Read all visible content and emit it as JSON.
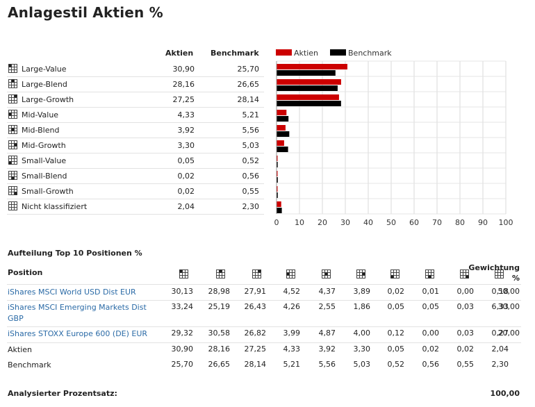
{
  "title": "Anlagestil Aktien %",
  "style_table": {
    "col_aktien": "Aktien",
    "col_benchmark": "Benchmark",
    "rows": [
      {
        "label": "Large-Value",
        "aktien": "30,90",
        "benchmark": "25,70"
      },
      {
        "label": "Large-Blend",
        "aktien": "28,16",
        "benchmark": "26,65"
      },
      {
        "label": "Large-Growth",
        "aktien": "27,25",
        "benchmark": "28,14"
      },
      {
        "label": "Mid-Value",
        "aktien": "4,33",
        "benchmark": "5,21"
      },
      {
        "label": "Mid-Blend",
        "aktien": "3,92",
        "benchmark": "5,56"
      },
      {
        "label": "Mid-Growth",
        "aktien": "3,30",
        "benchmark": "5,03"
      },
      {
        "label": "Small-Value",
        "aktien": "0,05",
        "benchmark": "0,52"
      },
      {
        "label": "Small-Blend",
        "aktien": "0,02",
        "benchmark": "0,56"
      },
      {
        "label": "Small-Growth",
        "aktien": "0,02",
        "benchmark": "0,55"
      },
      {
        "label": "Nicht klassifiziert",
        "aktien": "2,04",
        "benchmark": "2,30"
      }
    ]
  },
  "chart_data": {
    "type": "bar",
    "orientation": "horizontal",
    "categories": [
      "Large-Value",
      "Large-Blend",
      "Large-Growth",
      "Mid-Value",
      "Mid-Blend",
      "Mid-Growth",
      "Small-Value",
      "Small-Blend",
      "Small-Growth",
      "Nicht klassifiziert"
    ],
    "series": [
      {
        "name": "Aktien",
        "color": "#cc0000",
        "values": [
          30.9,
          28.16,
          27.25,
          4.33,
          3.92,
          3.3,
          0.05,
          0.02,
          0.02,
          2.04
        ]
      },
      {
        "name": "Benchmark",
        "color": "#000000",
        "values": [
          25.7,
          26.65,
          28.14,
          5.21,
          5.56,
          5.03,
          0.52,
          0.56,
          0.55,
          2.3
        ]
      }
    ],
    "xlim": [
      0,
      100
    ],
    "xticks": [
      "0",
      "10",
      "20",
      "30",
      "40",
      "50",
      "60",
      "70",
      "80",
      "90",
      "100"
    ],
    "legend": "top",
    "grid": true
  },
  "positions": {
    "section_title": "Aufteilung Top 10 Positionen %",
    "header_position": "Position",
    "header_weight_line1": "Gewichtung",
    "header_weight_line2": "%",
    "rows": [
      {
        "name": "iShares MSCI World USD Dist EUR",
        "link": true,
        "values": [
          "30,13",
          "28,98",
          "27,91",
          "4,52",
          "4,37",
          "3,89",
          "0,02",
          "0,01",
          "0,00",
          "0,18"
        ],
        "weight": "50,00"
      },
      {
        "name": "iShares MSCI Emerging Markets Dist GBP",
        "link": true,
        "values": [
          "33,24",
          "25,19",
          "26,43",
          "4,26",
          "2,55",
          "1,86",
          "0,05",
          "0,05",
          "0,03",
          "6,33"
        ],
        "weight": "30,00"
      },
      {
        "name": "iShares STOXX Europe 600 (DE) EUR",
        "link": true,
        "values": [
          "29,32",
          "30,58",
          "26,82",
          "3,99",
          "4,87",
          "4,00",
          "0,12",
          "0,00",
          "0,03",
          "0,27"
        ],
        "weight": "20,00"
      },
      {
        "name": "Aktien",
        "link": false,
        "values": [
          "30,90",
          "28,16",
          "27,25",
          "4,33",
          "3,92",
          "3,30",
          "0,05",
          "0,02",
          "0,02",
          "2,04"
        ],
        "weight": ""
      },
      {
        "name": "Benchmark",
        "link": false,
        "values": [
          "25,70",
          "26,65",
          "28,14",
          "5,21",
          "5,56",
          "5,03",
          "0,52",
          "0,56",
          "0,55",
          "2,30"
        ],
        "weight": ""
      }
    ],
    "footer_label": "Analysierter Prozentsatz:",
    "footer_value": "100,00"
  }
}
